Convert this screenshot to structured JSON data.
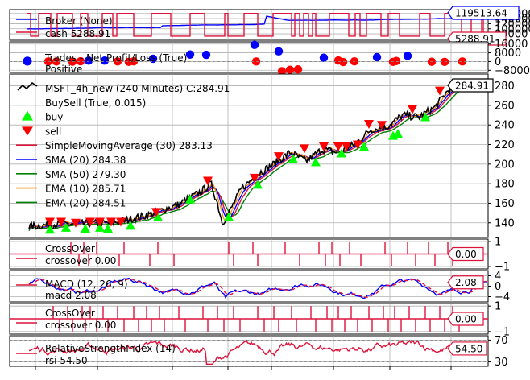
{
  "colors": {
    "crimson": "#dc143c",
    "blue": "#0000ff",
    "green": "#008000",
    "orange": "#ff8c00",
    "lime": "#00ff00",
    "red": "#ff0000",
    "black": "#000000",
    "grid": "#b0b0b0"
  },
  "chart_data": [
    {
      "type": "line",
      "panel": "broker",
      "series": [
        {
          "name": "Broker (None)",
          "color": "#0000ff",
          "last": 119513.64
        },
        {
          "name": "cash 5288.91",
          "color": "#dc143c",
          "last": 5288.91
        }
      ],
      "yticks": [
        80000,
        100000,
        120000,
        140000,
        160000
      ],
      "ytick_labels": [
        "80000",
        "100000",
        "120000",
        "140000",
        "160000"
      ],
      "callouts": [
        "119513.64",
        "5288.91"
      ],
      "ylim": [
        55000,
        175000
      ]
    },
    {
      "type": "scatter",
      "panel": "trades",
      "series": [
        {
          "name": "Trades - Net Profit/Loss (True)",
          "color": "#0000ff",
          "values": [
            5200,
            6500,
            6300,
            8800,
            7400,
            2100,
            3600,
            2400,
            5900
          ]
        },
        {
          "name": "Positive",
          "color": "#ff0000",
          "values": [
            -300,
            500,
            -600,
            1100,
            -200,
            800,
            -700,
            -400,
            1200,
            -500,
            -8200,
            -6900,
            1600,
            -600,
            400,
            -300,
            1900,
            -700,
            -500,
            900,
            200
          ]
        }
      ],
      "yticks": [
        -8000,
        0,
        8000,
        16000
      ],
      "ytick_labels": [
        "−8000",
        "0",
        "8000",
        "16000"
      ],
      "ylim": [
        -10000,
        18000
      ]
    },
    {
      "type": "line",
      "panel": "price",
      "series": [
        {
          "name": "MSFT_4h_new (240 Minutes) C:284.91",
          "color": "#000000",
          "last": 284.91
        },
        {
          "name": "BuySell (True, 0.015)"
        },
        {
          "name": "buy",
          "color": "#00ff00"
        },
        {
          "name": "sell",
          "color": "#ff0000"
        },
        {
          "name": "SimpleMovingAverage (30) 283.13",
          "color": "#dc143c",
          "last": 283.13
        },
        {
          "name": "SMA (20) 284.38",
          "color": "#0000ff",
          "last": 284.38
        },
        {
          "name": "SMA (50) 279.30",
          "color": "#008000",
          "last": 279.3
        },
        {
          "name": "EMA (10) 285.71",
          "color": "#ff8c00",
          "last": 285.71
        },
        {
          "name": "EMA (20) 284.51",
          "color": "#008000",
          "last": 284.51
        }
      ],
      "yticks": [
        140,
        160,
        180,
        200,
        220,
        240,
        260,
        280
      ],
      "ytick_labels": [
        "140",
        "160",
        "180",
        "200",
        "220",
        "240",
        "260",
        "280"
      ],
      "callouts": [
        "284.91"
      ],
      "ylim": [
        125,
        292
      ]
    },
    {
      "type": "line",
      "panel": "crossover1",
      "series": [
        {
          "name": "CrossOver",
          "color": "#dc143c"
        },
        {
          "name": "crossover 0.00",
          "color": "#dc143c",
          "last": 0.0
        }
      ],
      "yticks": [
        -1,
        1
      ],
      "ytick_labels": [
        "−1",
        "1"
      ],
      "callouts": [
        "0.00"
      ],
      "ylim": [
        -1.2,
        1.2
      ]
    },
    {
      "type": "line",
      "panel": "macd",
      "series": [
        {
          "name": "MACD (12, 26, 9)",
          "color": "#0000ff"
        },
        {
          "name": "macd 2.08",
          "color": "#dc143c",
          "last": 2.08
        }
      ],
      "yticks": [
        -4,
        0,
        4
      ],
      "ytick_labels": [
        "−4",
        "0",
        "4"
      ],
      "callouts": [
        "2.08"
      ],
      "ylim": [
        -6,
        6
      ]
    },
    {
      "type": "line",
      "panel": "crossover2",
      "series": [
        {
          "name": "CrossOver",
          "color": "#dc143c"
        },
        {
          "name": "crossover 0.00",
          "color": "#dc143c",
          "last": 0.0
        }
      ],
      "yticks": [
        -1,
        1
      ],
      "ytick_labels": [
        "−1",
        "1"
      ],
      "callouts": [
        "0.00"
      ],
      "ylim": [
        -1.2,
        1.2
      ]
    },
    {
      "type": "line",
      "panel": "rsi",
      "series": [
        {
          "name": "RelativeStrengthIndex (14)",
          "color": "#dc143c"
        },
        {
          "name": "rsi 54.50",
          "color": "#dc143c",
          "last": 54.5
        }
      ],
      "yticks": [
        30,
        70
      ],
      "ytick_labels": [
        "30",
        "70"
      ],
      "callouts": [
        "54.50"
      ],
      "ylim": [
        22,
        78
      ]
    }
  ]
}
